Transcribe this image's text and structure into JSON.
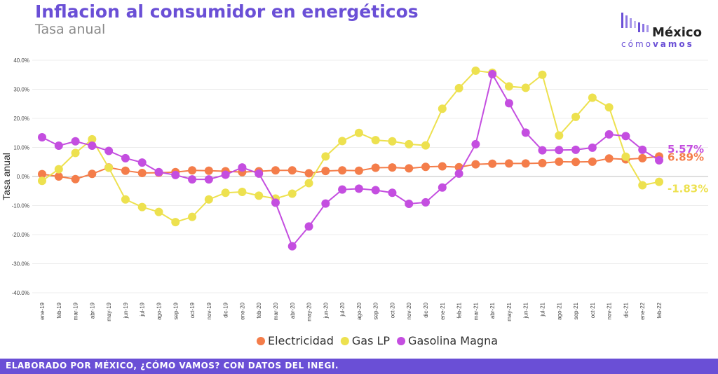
{
  "header": {
    "title": "Inflacion al consumidor en energéticos",
    "subtitle": "Tasa anual"
  },
  "logo": {
    "word": "México",
    "sub_light": "cómo",
    "sub_bold": "vamos",
    "icon": "bar-logo-icon"
  },
  "footer": {
    "text": "ELABORADO POR MÉXICO, ¿CÓMO VAMOS? CON DATOS DEL INEGI."
  },
  "chart_data": {
    "type": "line",
    "ylabel": "Tasa anual",
    "ylim": [
      -40,
      40
    ],
    "yticks": [
      40,
      30,
      20,
      10,
      0,
      -10,
      -20,
      -30,
      -40
    ],
    "ytick_labels": [
      "40.0%",
      "30.0%",
      "20.0%",
      "10.0%",
      "0.0%",
      "-10.0%",
      "-20.0%",
      "-30.0%",
      "-40.0%"
    ],
    "grid": "horizontal",
    "legend": "bottom",
    "categories": [
      "ene-19",
      "feb-19",
      "mar-19",
      "abr-19",
      "may-19",
      "jun-19",
      "jul-19",
      "ago-19",
      "sep-19",
      "oct-19",
      "nov-19",
      "dic-19",
      "ene-20",
      "feb-20",
      "mar-20",
      "abr-20",
      "may-20",
      "jun-20",
      "jul-20",
      "ago-20",
      "sep-20",
      "oct-20",
      "nov-20",
      "dic-20",
      "ene-21",
      "feb-21",
      "mar-21",
      "abr-21",
      "may-21",
      "jun-21",
      "jul-21",
      "ago-21",
      "sep-21",
      "oct-21",
      "nov-21",
      "dic-21",
      "ene-22",
      "feb-22"
    ],
    "series": [
      {
        "name": "Electricidad",
        "color": "#f47d4a",
        "values": [
          0.8,
          0.0,
          -0.9,
          0.9,
          3.1,
          2.0,
          1.2,
          1.3,
          1.5,
          2.1,
          2.0,
          1.8,
          1.5,
          1.8,
          2.1,
          2.1,
          1.1,
          1.9,
          2.1,
          2.0,
          3.0,
          3.1,
          2.8,
          3.3,
          3.5,
          3.2,
          4.2,
          4.4,
          4.5,
          4.5,
          4.6,
          5.1,
          5.0,
          5.1,
          6.2,
          5.9,
          6.3,
          6.89
        ],
        "end_label": "6.89%"
      },
      {
        "name": "Gas LP",
        "color": "#ede14f",
        "values": [
          -1.5,
          2.5,
          8.1,
          12.8,
          3.0,
          -7.9,
          -10.5,
          -12.2,
          -15.7,
          -13.9,
          -7.9,
          -5.6,
          -5.3,
          -6.6,
          -7.6,
          -5.9,
          -2.3,
          6.9,
          12.2,
          15.0,
          12.5,
          12.1,
          11.1,
          10.7,
          23.3,
          30.4,
          36.4,
          35.7,
          31.0,
          30.5,
          35.0,
          14.1,
          20.5,
          27.1,
          23.8,
          6.8,
          -3.0,
          -1.83
        ],
        "end_label": "-1.83%"
      },
      {
        "name": "Gasolina Magna",
        "color": "#c44ee0",
        "values": [
          13.5,
          10.6,
          12.1,
          10.6,
          8.8,
          6.3,
          4.8,
          1.5,
          0.5,
          -1.0,
          -1.0,
          0.6,
          3.1,
          1.0,
          -9.0,
          -24.0,
          -17.2,
          -9.3,
          -4.5,
          -4.2,
          -4.7,
          -5.6,
          -9.4,
          -8.9,
          -3.8,
          1.0,
          11.1,
          35.2,
          25.2,
          15.1,
          9.0,
          9.1,
          9.2,
          9.9,
          14.5,
          13.9,
          9.2,
          5.57
        ],
        "end_label": "5.57%"
      }
    ]
  }
}
